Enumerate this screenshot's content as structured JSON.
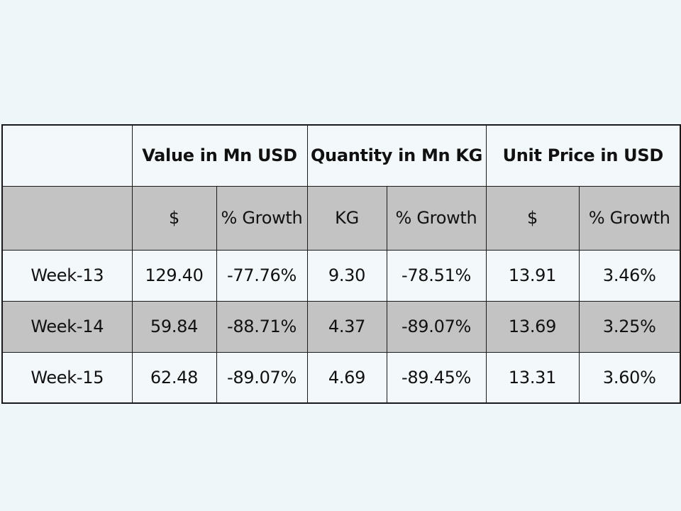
{
  "table": {
    "group_headers": [
      "",
      "Value in Mn USD",
      "Quantity in Mn KG",
      "Unit Price in USD"
    ],
    "sub_headers": [
      "",
      "$",
      "% Growth",
      "KG",
      "% Growth",
      "$",
      "% Growth"
    ],
    "rows": [
      [
        "Week-13",
        "129.40",
        "-77.76%",
        "9.30",
        "-78.51%",
        "13.91",
        "3.46%"
      ],
      [
        "Week-14",
        "59.84",
        "-88.71%",
        "4.37",
        "-89.07%",
        "13.69",
        "3.25%"
      ],
      [
        "Week-15",
        "62.48",
        "-89.07%",
        "4.69",
        "-89.45%",
        "13.31",
        "3.60%"
      ]
    ]
  },
  "colors": {
    "background": "#eef6f9",
    "light_row": "#f3f9fb",
    "shaded_row": "#c3c3c3",
    "border": "#1a1a1a"
  }
}
